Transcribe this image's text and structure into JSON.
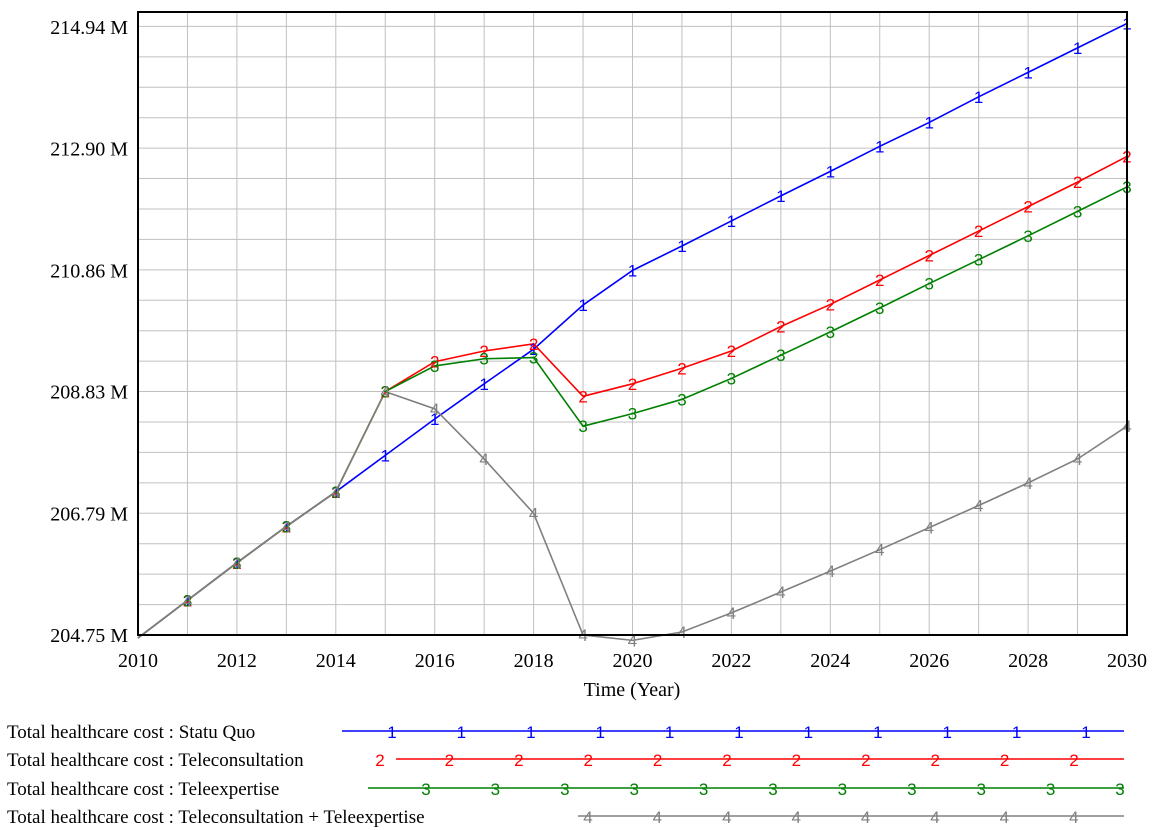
{
  "chart_data": {
    "type": "line",
    "title": "",
    "xlabel": "Time (Year)",
    "ylabel": "",
    "xlim": [
      2010,
      2030
    ],
    "ylim": [
      204.75,
      215.0
    ],
    "x_ticks": [
      2010,
      2012,
      2014,
      2016,
      2018,
      2020,
      2022,
      2024,
      2026,
      2028,
      2030
    ],
    "x_tick_labels": [
      "2010",
      "2012",
      "2014",
      "2016",
      "2018",
      "2020",
      "2022",
      "2024",
      "2026",
      "2028",
      "2030"
    ],
    "y_ticks": [
      204.75,
      206.79,
      208.83,
      210.86,
      212.9,
      214.94
    ],
    "y_tick_labels": [
      "204.75 M",
      "206.79 M",
      "208.83 M",
      "210.86 M",
      "212.90 M",
      "214.94 M"
    ],
    "grid": true,
    "legend_position": "bottom",
    "x": [
      2010,
      2011,
      2012,
      2013,
      2014,
      2015,
      2016,
      2017,
      2018,
      2019,
      2020,
      2021,
      2022,
      2023,
      2024,
      2025,
      2026,
      2027,
      2028,
      2029,
      2030
    ],
    "series": [
      {
        "name": "Total healthcare cost : Statu Quo",
        "marker": "1",
        "color": "#0000ff",
        "values": [
          204.7,
          205.33,
          205.96,
          206.57,
          207.15,
          207.76,
          208.37,
          208.96,
          209.54,
          210.28,
          210.86,
          211.27,
          211.69,
          212.11,
          212.52,
          212.94,
          213.34,
          213.77,
          214.18,
          214.59,
          215.0
        ]
      },
      {
        "name": "Total healthcare cost : Teleconsultation",
        "marker": "2",
        "color": "#ff0000",
        "values": [
          204.7,
          205.33,
          205.96,
          206.57,
          207.15,
          208.83,
          209.33,
          209.51,
          209.63,
          208.75,
          208.96,
          209.22,
          209.51,
          209.92,
          210.29,
          210.7,
          211.11,
          211.52,
          211.93,
          212.34,
          212.77
        ]
      },
      {
        "name": "Total healthcare cost : Teleexpertise",
        "marker": "3",
        "color": "#008000",
        "values": [
          204.7,
          205.33,
          205.96,
          206.57,
          207.15,
          208.83,
          209.26,
          209.38,
          209.4,
          208.25,
          208.46,
          208.7,
          209.05,
          209.44,
          209.83,
          210.23,
          210.64,
          211.04,
          211.44,
          211.85,
          212.26
        ]
      },
      {
        "name": "Total healthcare cost : Teleconsultation + Teleexpertise",
        "marker": "4",
        "color": "#808080",
        "values": [
          204.7,
          205.33,
          205.96,
          206.57,
          207.15,
          208.83,
          208.54,
          207.7,
          206.79,
          204.75,
          204.66,
          204.8,
          205.12,
          205.47,
          205.82,
          206.18,
          206.55,
          206.92,
          207.3,
          207.7,
          208.25
        ]
      }
    ]
  }
}
